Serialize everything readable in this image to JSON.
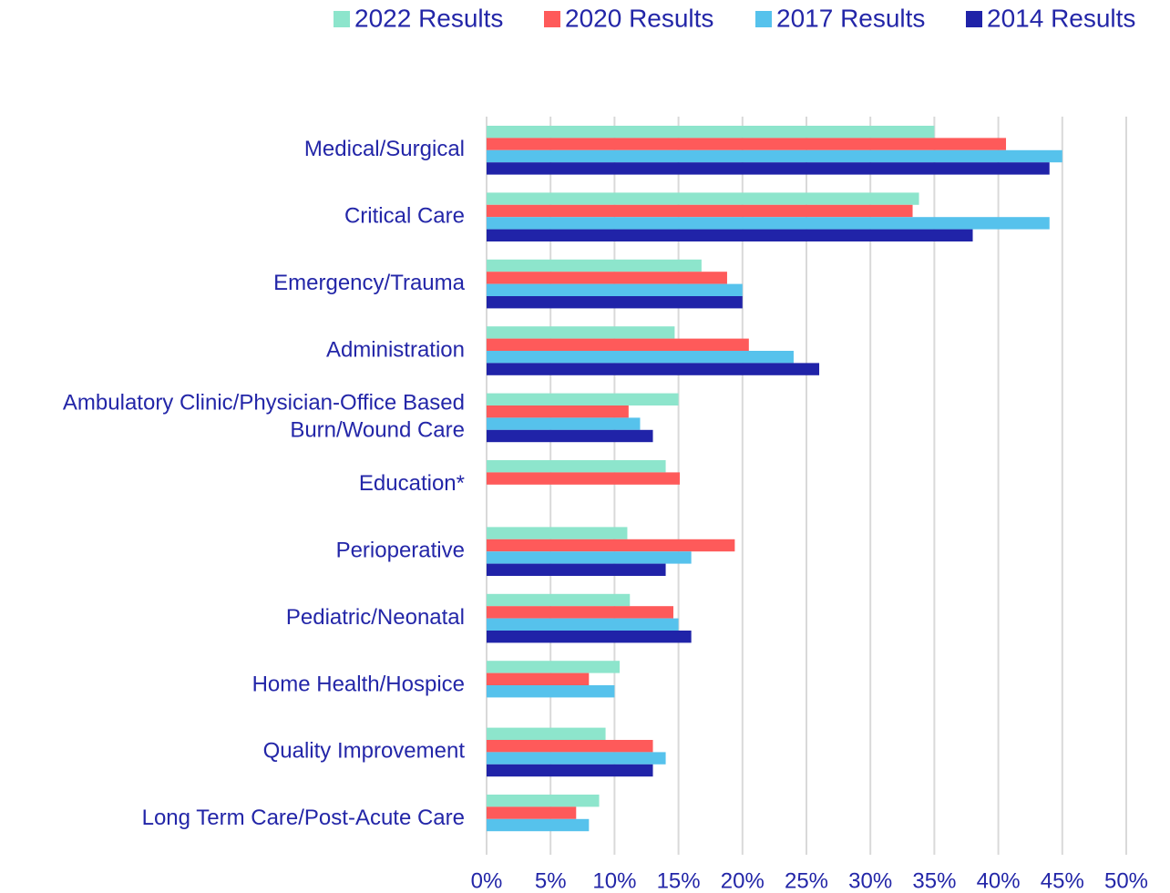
{
  "chart_data": {
    "type": "bar",
    "orientation": "horizontal",
    "categories": [
      "Medical/Surgical",
      "Critical Care",
      "Emergency/Trauma",
      "Administration",
      [
        "Ambulatory Clinic/Physician-Office Based",
        "Burn/Wound Care"
      ],
      "Education*",
      "Perioperative",
      "Pediatric/Neonatal",
      "Home Health/Hospice",
      "Quality Improvement",
      "Long Term Care/Post-Acute Care"
    ],
    "series": [
      {
        "name": "2022 Results",
        "color": "#8de5cc",
        "values": [
          35.0,
          33.8,
          16.8,
          14.7,
          15.0,
          14.0,
          11.0,
          11.2,
          10.4,
          9.3,
          8.8
        ]
      },
      {
        "name": "2020 Results",
        "color": "#fe5a5a",
        "values": [
          40.6,
          33.3,
          18.8,
          20.5,
          11.1,
          15.1,
          19.4,
          14.6,
          8.0,
          13.0,
          7.0
        ]
      },
      {
        "name": "2017 Results",
        "color": "#56c2ec",
        "values": [
          45,
          44,
          20,
          24,
          12,
          null,
          16,
          15,
          10,
          14,
          8
        ]
      },
      {
        "name": "2014 Results",
        "color": "#2023a8",
        "values": [
          44,
          38,
          20,
          26,
          13,
          null,
          14,
          16,
          null,
          13,
          null
        ]
      }
    ],
    "xlim": [
      0,
      50
    ],
    "xticks": [
      {
        "value": 0,
        "label": "0%"
      },
      {
        "value": 5,
        "label": "5%"
      },
      {
        "value": 10,
        "label": "10%"
      },
      {
        "value": 15,
        "label": "15%"
      },
      {
        "value": 20,
        "label": "20%"
      },
      {
        "value": 25,
        "label": "25%"
      },
      {
        "value": 30,
        "label": "30%"
      },
      {
        "value": 35,
        "label": "35%"
      },
      {
        "value": 40,
        "label": "40%"
      },
      {
        "value": 45,
        "label": "45%"
      },
      {
        "value": 50,
        "label": "50%"
      }
    ],
    "grid": true,
    "legend": "top"
  }
}
